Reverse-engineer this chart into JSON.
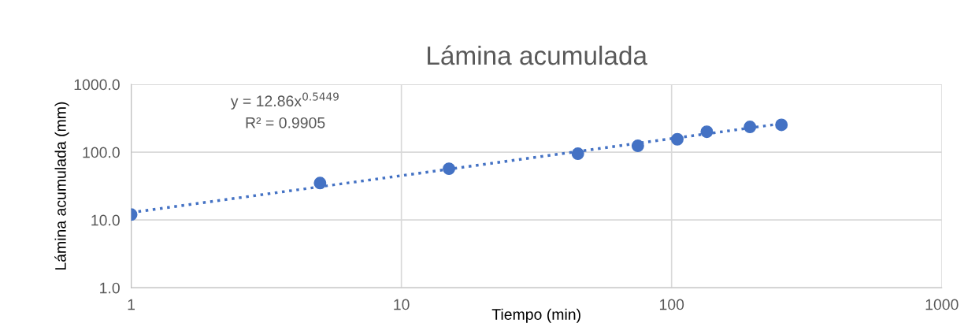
{
  "chart_data": {
    "type": "scatter",
    "title": "Lámina acumulada",
    "xlabel": "Tiempo (min)",
    "ylabel": "Lámina acumulada (mm)",
    "x": [
      1,
      5,
      15,
      45,
      75,
      105,
      135,
      195,
      255
    ],
    "series": [
      {
        "color": "#4472c4",
        "marker": "circle",
        "values": [
          12.0,
          35,
          57,
          95,
          124,
          155,
          200,
          236,
          253
        ]
      },
      {
        "type": "line",
        "color": "#4472c4",
        "line_style": "dotted",
        "x": [
          1,
          255
        ],
        "values": [
          12.86,
          263.5
        ]
      }
    ],
    "annotations": [
      "y = 12.86x$^{0.5449}$",
      "R² = 0.9905"
    ],
    "log": "xy",
    "grid": true,
    "legend": false,
    "xlim": [
      1,
      1000
    ],
    "xticks": [
      1,
      10,
      100,
      1000
    ],
    "ylim": [
      1,
      1000
    ],
    "yticks": [
      {
        "value": 1,
        "label": "1.0"
      },
      {
        "value": 10,
        "label": "10.0"
      },
      {
        "value": 100,
        "label": "100.0"
      },
      {
        "value": 1000,
        "label": "1000.0"
      }
    ]
  }
}
